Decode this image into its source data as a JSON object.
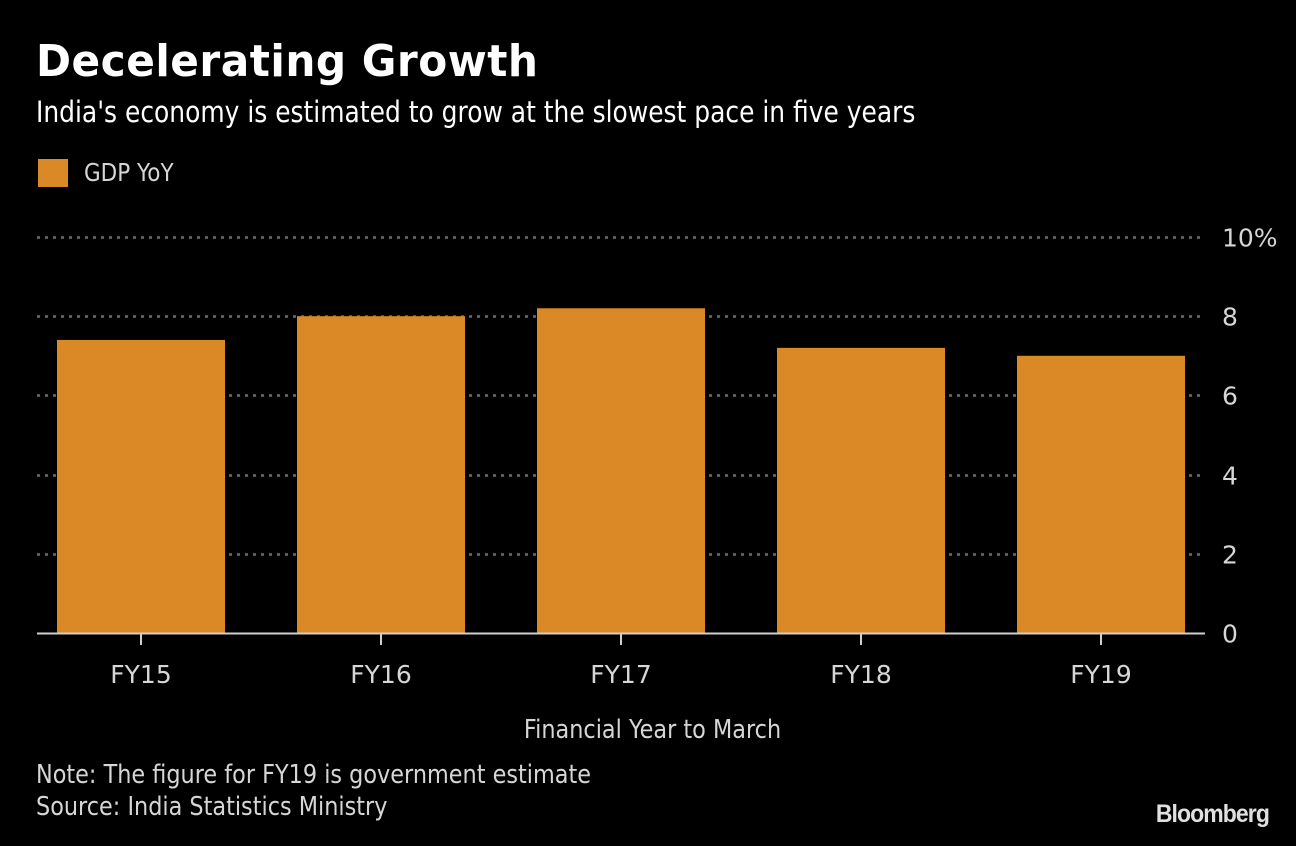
{
  "header": {
    "title": "Decelerating Growth",
    "subtitle": "India's economy is estimated to grow at the slowest pace in five years"
  },
  "footer": {
    "note": "Note: The figure for FY19 is government estimate",
    "source": "Source: India Statistics Ministry",
    "brand": "Bloomberg"
  },
  "colors": {
    "background": "#000000",
    "bar": "#db8826",
    "grid": "#6b6b6b",
    "axis": "#cfcfcf",
    "text": "#d6d6d6"
  },
  "chart_data": {
    "type": "bar",
    "title": "Decelerating Growth",
    "subtitle": "India's economy is estimated to grow at the slowest pace in five years",
    "categories": [
      "FY15",
      "FY16",
      "FY17",
      "FY18",
      "FY19"
    ],
    "series": [
      {
        "name": "GDP YoY",
        "values": [
          7.4,
          8.0,
          8.2,
          7.2,
          7.0
        ]
      }
    ],
    "xlabel": "Financial Year to March",
    "ylabel": "",
    "ylim": [
      0,
      10
    ],
    "yticks": [
      0,
      2,
      4,
      6,
      8,
      10
    ],
    "ytick_labels": [
      "0",
      "2",
      "4",
      "6",
      "8",
      "10%"
    ],
    "y_axis_side": "right",
    "grid": true,
    "grid_style": "dotted",
    "legend": {
      "position": "top-left",
      "entries": [
        "GDP YoY"
      ]
    }
  }
}
